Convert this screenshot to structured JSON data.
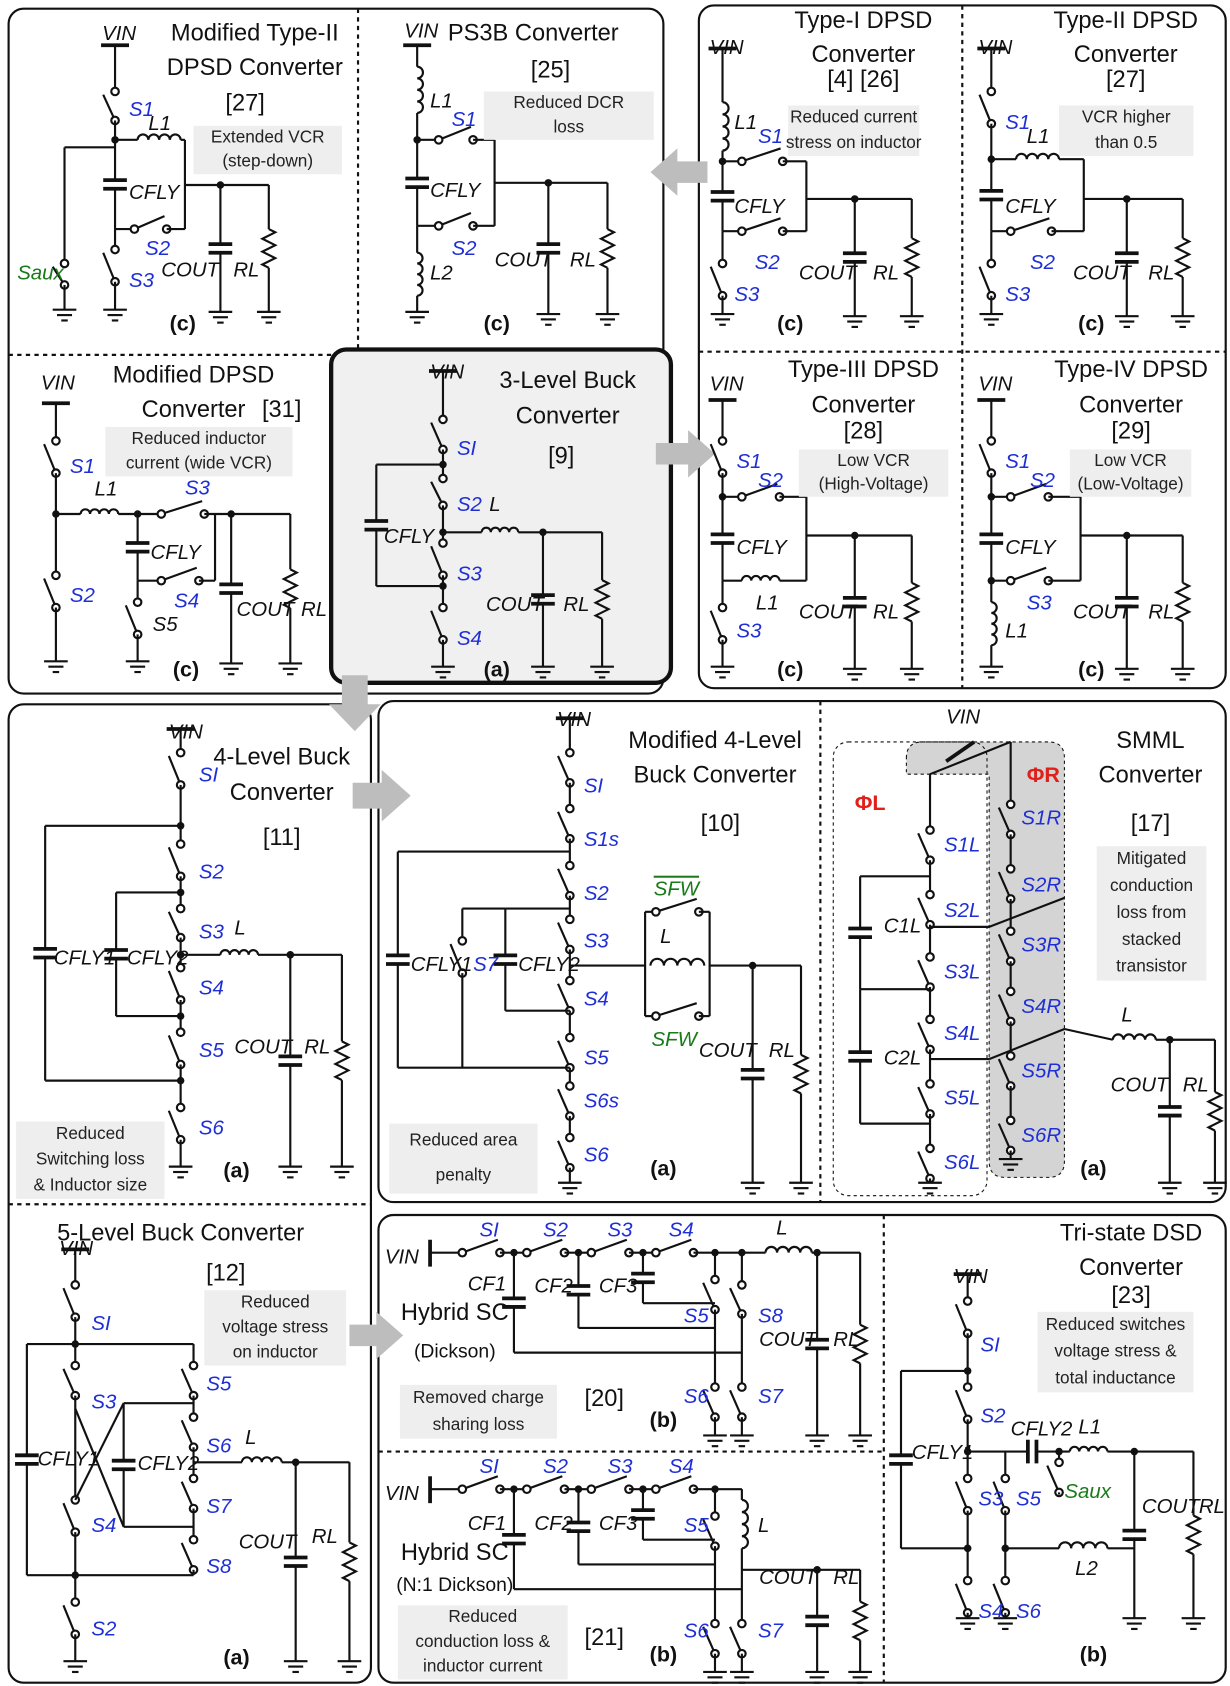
{
  "panels": [
    {
      "title": [
        "Modified Type-II",
        "DPSD Converter"
      ],
      "ref": "[27]",
      "note": [
        "Extended VCR",
        "(step-down)"
      ],
      "label": "(c)",
      "components": [
        "VIN",
        "S1",
        "L1",
        "CFLY",
        "S2",
        "S3",
        "Saux",
        "COUT",
        "RL"
      ]
    },
    {
      "title": [
        "PS3B Converter"
      ],
      "ref": "[25]",
      "note": [
        "Reduced DCR",
        "loss"
      ],
      "label": "(c)",
      "components": [
        "VIN",
        "L1",
        "S1",
        "CFLY",
        "S2",
        "L2",
        "COUT",
        "RL"
      ]
    },
    {
      "title": [
        "Type-I DPSD",
        "Converter"
      ],
      "ref": "[4]  [26]",
      "note": [
        "Reduced current",
        "stress on inductor"
      ],
      "label": "(c)",
      "components": [
        "VIN",
        "L1",
        "S1",
        "CFLY",
        "S2",
        "S3",
        "COUT",
        "RL"
      ]
    },
    {
      "title": [
        "Type-II DPSD",
        "Converter"
      ],
      "ref": "[27]",
      "note": [
        "VCR higher",
        "than 0.5"
      ],
      "label": "(c)",
      "components": [
        "VIN",
        "S1",
        "L1",
        "CFLY",
        "S2",
        "S3",
        "COUT",
        "RL"
      ]
    },
    {
      "title": [
        "Modified DPSD",
        "Converter"
      ],
      "ref": "[31]",
      "note": [
        "Reduced inductor",
        "current (wide VCR)"
      ],
      "label": "(c)",
      "components": [
        "VIN",
        "S1",
        "L1",
        "S3",
        "CFLY",
        "S4",
        "S2",
        "S5",
        "COUT",
        "RL"
      ]
    },
    {
      "title": [
        "3-Level Buck",
        "Converter"
      ],
      "ref": "[9]",
      "note": [],
      "label": "(a)",
      "components": [
        "VIN",
        "SI",
        "S2",
        "CFLY",
        "L",
        "S3",
        "COUT",
        "RL",
        "S4"
      ]
    },
    {
      "title": [
        "Type-III DPSD",
        "Converter"
      ],
      "ref": "[28]",
      "note": [
        "Low VCR",
        "(High-Voltage)"
      ],
      "label": "(c)",
      "components": [
        "VIN",
        "S1",
        "S2",
        "CFLY",
        "L1",
        "S3",
        "COUT",
        "RL"
      ]
    },
    {
      "title": [
        "Type-IV DPSD",
        "Converter"
      ],
      "ref": "[29]",
      "note": [
        "Low VCR",
        "(Low-Voltage)"
      ],
      "label": "(c)",
      "components": [
        "VIN",
        "S1",
        "S2",
        "CFLY",
        "S3",
        "L1",
        "COUT",
        "RL"
      ]
    },
    {
      "title": [
        "4-Level Buck",
        "Converter"
      ],
      "ref": "[11]",
      "note": [
        "Reduced",
        "Switching loss",
        "& Inductor size"
      ],
      "label": "(a)",
      "components": [
        "VIN",
        "SI",
        "S2",
        "S3",
        "L",
        "CFLY1",
        "CFLY2",
        "S4",
        "S5",
        "COUT",
        "RL",
        "S6"
      ]
    },
    {
      "title": [
        "Modified 4-Level",
        "Buck Converter"
      ],
      "ref": "[10]",
      "note": [
        "Reduced area",
        "penalty"
      ],
      "label": "(a)",
      "components": [
        "VIN",
        "SI",
        "S1s",
        "S2",
        "S3",
        "SFW",
        "L",
        "CFLY1",
        "S7",
        "CFLY2",
        "S4",
        "S5",
        "SFW",
        "COUT",
        "RL",
        "S6s",
        "S6"
      ]
    },
    {
      "title": [
        "SMML",
        "Converter"
      ],
      "ref": "[17]",
      "note": [
        "Mitigated",
        "conduction",
        "loss from",
        "stacked",
        "transistor"
      ],
      "label": "(a)",
      "components": [
        "VIN",
        "ΦL",
        "ΦR",
        "S1L",
        "S2L",
        "S3L",
        "S4L",
        "S5L",
        "S6L",
        "C1L",
        "C2L",
        "S1R",
        "S2R",
        "S3R",
        "S4R",
        "S5R",
        "S6R",
        "L",
        "COUT",
        "RL"
      ]
    },
    {
      "title": [
        "5-Level Buck Converter"
      ],
      "ref": "[12]",
      "note": [
        "Reduced",
        "voltage stress",
        "on inductor"
      ],
      "label": "(a)",
      "components": [
        "VIN",
        "SI",
        "S3",
        "S5",
        "S6",
        "L",
        "CFLY1",
        "CFLY2",
        "S7",
        "S4",
        "S8",
        "COUT",
        "RL",
        "S2"
      ]
    },
    {
      "title": [
        "Hybrid SC",
        "(Dickson)"
      ],
      "ref": "[20]",
      "note": [
        "Removed charge",
        "sharing loss"
      ],
      "label": "(b)",
      "components": [
        "VIN",
        "SI",
        "S2",
        "S3",
        "S4",
        "L",
        "CF1",
        "CF2",
        "CF3",
        "S5",
        "S8",
        "COUT",
        "RL",
        "S6",
        "S7"
      ]
    },
    {
      "title": [
        "Hybrid SC",
        "(N:1 Dickson)"
      ],
      "ref": "[21]",
      "note": [
        "Reduced",
        "conduction loss &",
        "inductor current"
      ],
      "label": "(b)",
      "components": [
        "VIN",
        "SI",
        "S2",
        "S3",
        "S4",
        "CF1",
        "CF2",
        "CF3",
        "S5",
        "L",
        "COUT",
        "RL",
        "S6",
        "S7"
      ]
    },
    {
      "title": [
        "Tri-state DSD",
        "Converter"
      ],
      "ref": "[23]",
      "note": [
        "Reduced switches",
        "voltage stress &",
        "total inductance"
      ],
      "label": "(b)",
      "components": [
        "VIN",
        "SI",
        "S2",
        "CFLY1",
        "CFLY2",
        "L1",
        "S3",
        "S5",
        "Saux",
        "COUT",
        "RL",
        "L2",
        "S4",
        "S6"
      ]
    }
  ]
}
